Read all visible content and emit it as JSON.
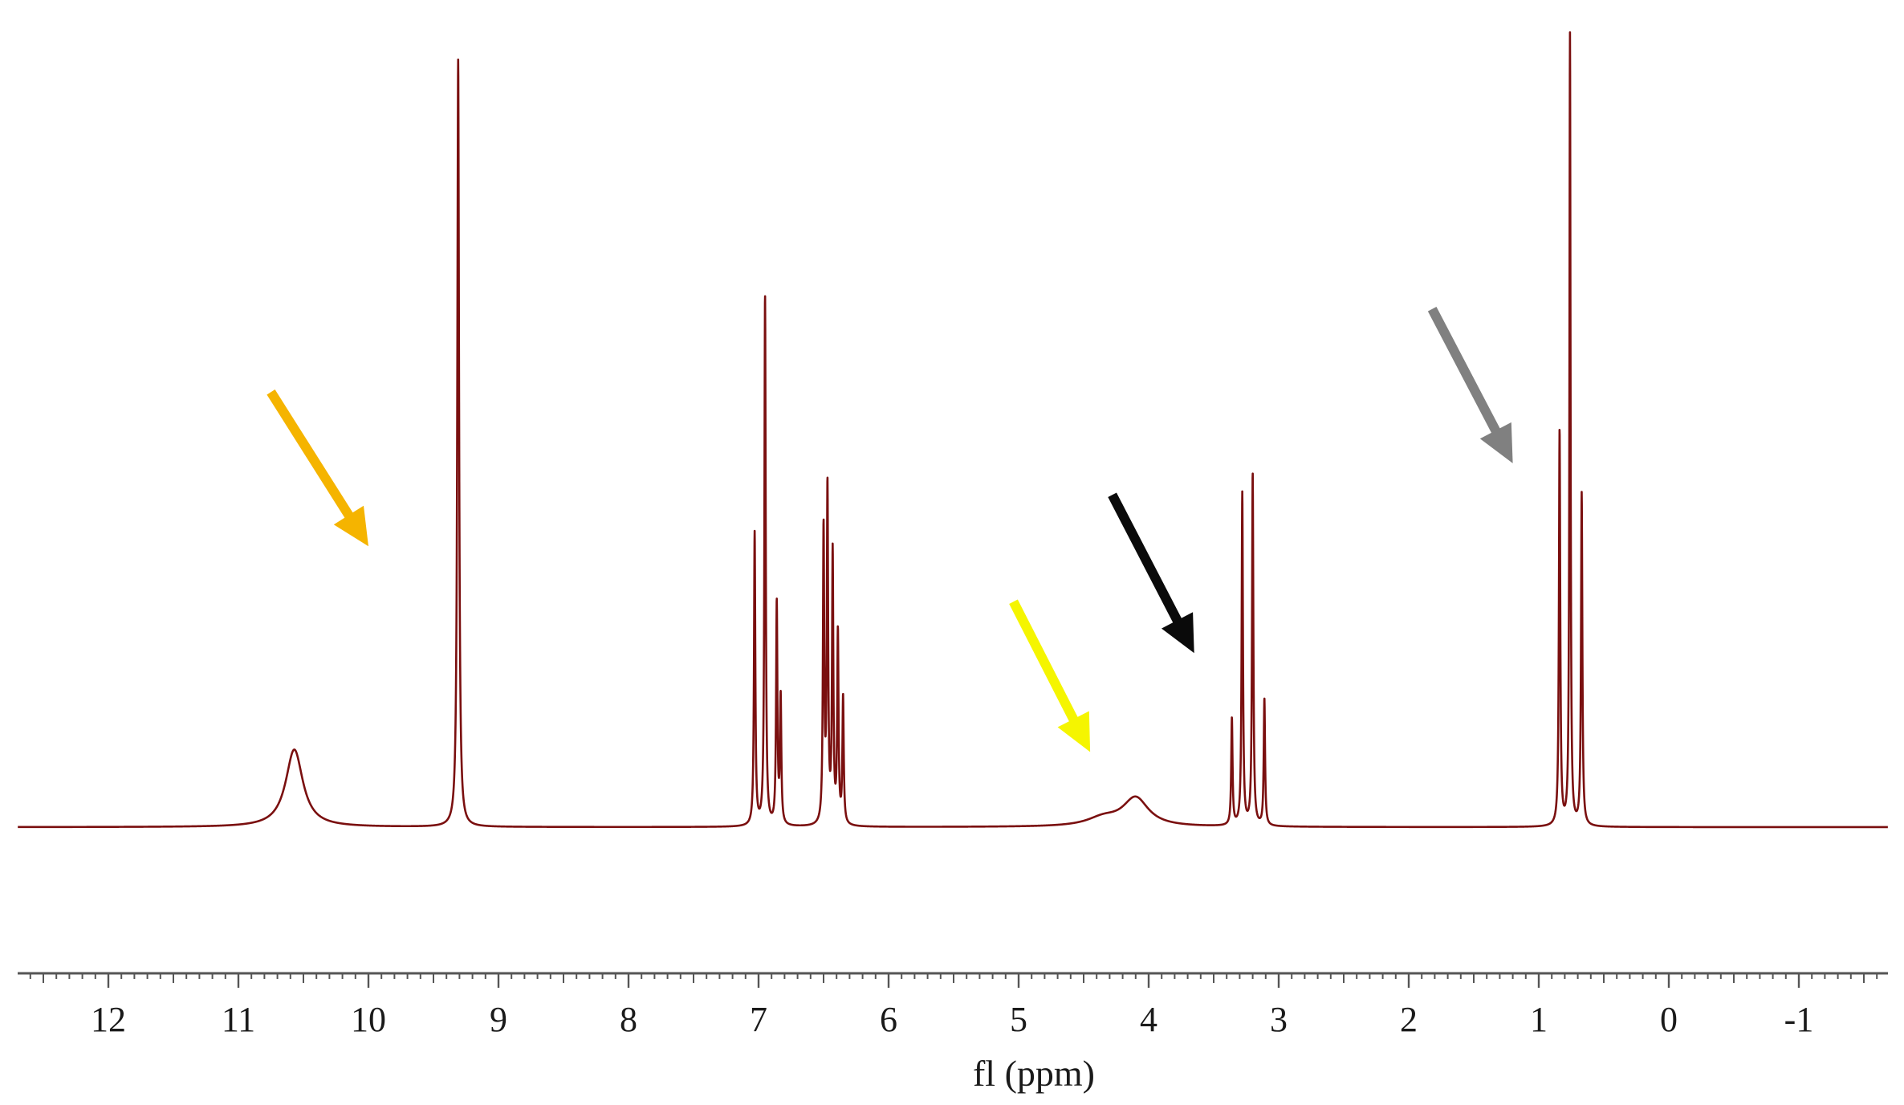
{
  "chart_data": {
    "type": "line",
    "xlabel": "fl (ppm)",
    "x_reversed": true,
    "xlim": [
      12.7,
      -1.7
    ],
    "ylim": [
      0,
      1.0
    ],
    "grid": false,
    "ticks": [
      "12",
      "11",
      "10",
      "9",
      "8",
      "7",
      "6",
      "5",
      "4",
      "3",
      "2",
      "1",
      "0",
      "-1"
    ],
    "tick_values": [
      12,
      11,
      10,
      9,
      8,
      7,
      6,
      5,
      4,
      3,
      2,
      1,
      0,
      -1
    ],
    "minor_tick_step": 0.1,
    "series_color": "#7a0f0f",
    "peaks": [
      {
        "ppm": 10.57,
        "height": 0.098,
        "width": 0.08
      },
      {
        "ppm": 9.31,
        "height": 0.97,
        "width": 0.008
      },
      {
        "ppm": 7.03,
        "height": 0.37,
        "width": 0.006
      },
      {
        "ppm": 6.95,
        "height": 0.67,
        "width": 0.006
      },
      {
        "ppm": 6.86,
        "height": 0.28,
        "width": 0.006
      },
      {
        "ppm": 6.83,
        "height": 0.16,
        "width": 0.006
      },
      {
        "ppm": 6.5,
        "height": 0.37,
        "width": 0.006
      },
      {
        "ppm": 6.47,
        "height": 0.42,
        "width": 0.006
      },
      {
        "ppm": 6.43,
        "height": 0.34,
        "width": 0.006
      },
      {
        "ppm": 6.39,
        "height": 0.24,
        "width": 0.006
      },
      {
        "ppm": 6.35,
        "height": 0.16,
        "width": 0.006
      },
      {
        "ppm": 4.1,
        "height": 0.036,
        "width": 0.12
      },
      {
        "ppm": 4.35,
        "height": 0.01,
        "width": 0.15
      },
      {
        "ppm": 3.36,
        "height": 0.135,
        "width": 0.006
      },
      {
        "ppm": 3.28,
        "height": 0.42,
        "width": 0.006
      },
      {
        "ppm": 3.2,
        "height": 0.445,
        "width": 0.006
      },
      {
        "ppm": 3.11,
        "height": 0.16,
        "width": 0.006
      },
      {
        "ppm": 0.84,
        "height": 0.5,
        "width": 0.006
      },
      {
        "ppm": 0.76,
        "height": 1.0,
        "width": 0.005
      },
      {
        "ppm": 0.67,
        "height": 0.42,
        "width": 0.006
      }
    ],
    "annotations": [
      {
        "type": "arrow",
        "color": "#f5b400",
        "tail": [
          10.75,
          0.55
        ],
        "head": [
          10.0,
          0.355
        ]
      },
      {
        "type": "arrow",
        "color": "#f5f500",
        "tail": [
          5.04,
          0.285
        ],
        "head": [
          4.45,
          0.095
        ]
      },
      {
        "type": "arrow",
        "color": "#0a0a0a",
        "tail": [
          4.28,
          0.42
        ],
        "head": [
          3.65,
          0.22
        ]
      },
      {
        "type": "arrow",
        "color": "#808080",
        "tail": [
          1.82,
          0.655
        ],
        "head": [
          1.2,
          0.46
        ]
      }
    ]
  }
}
